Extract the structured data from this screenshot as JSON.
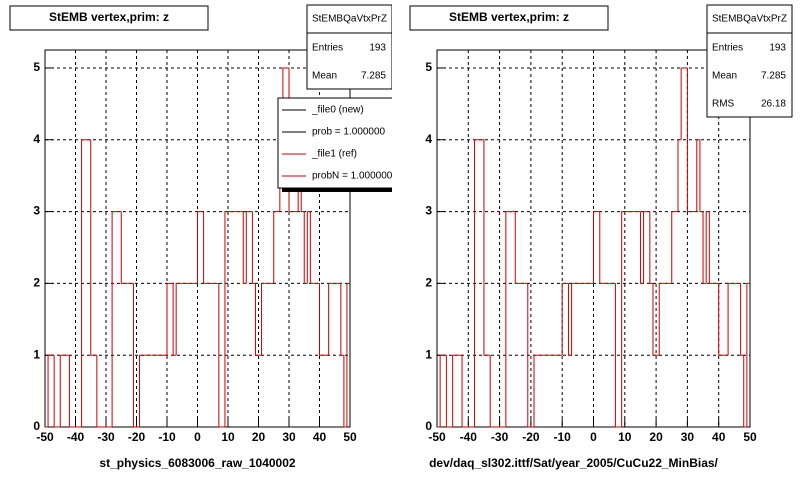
{
  "chart_data": [
    {
      "type": "histogram",
      "title": "StEMB  vertex,prim: z",
      "xlabel": "st_physics_6083006_raw_1040002",
      "bins": [
        -50,
        -49,
        -48,
        -47,
        -46,
        -45,
        -44,
        -43,
        -42,
        -41,
        -40,
        -39,
        -38,
        -37,
        -36,
        -35,
        -34,
        -33,
        -32,
        -31,
        -30,
        -29,
        -28,
        -27,
        -26,
        -25,
        -24,
        -23,
        -22,
        -21,
        -20,
        -19,
        -18,
        -17,
        -16,
        -15,
        -14,
        -13,
        -12,
        -11,
        -10,
        -9,
        -8,
        -7,
        -6,
        -5,
        -4,
        -3,
        -2,
        -1,
        0,
        1,
        2,
        3,
        4,
        5,
        6,
        7,
        8,
        9,
        10,
        11,
        12,
        13,
        14,
        15,
        16,
        17,
        18,
        19,
        20,
        21,
        22,
        23,
        24,
        25,
        26,
        27,
        28,
        29,
        30,
        31,
        32,
        33,
        34,
        35,
        36,
        37,
        38,
        39,
        40,
        41,
        42,
        43,
        44,
        45,
        46,
        47,
        48,
        49,
        50
      ],
      "values": [
        0,
        1,
        1,
        0,
        0,
        1,
        1,
        1,
        0,
        0,
        0,
        0,
        4,
        4,
        4,
        1,
        1,
        0,
        0,
        0,
        0,
        0,
        3,
        3,
        3,
        2,
        2,
        2,
        2,
        0,
        0,
        1,
        1,
        1,
        1,
        1,
        1,
        1,
        1,
        1,
        2,
        2,
        1,
        2,
        2,
        2,
        2,
        2,
        2,
        2,
        3,
        3,
        2,
        2,
        2,
        2,
        2,
        0,
        0,
        3,
        3,
        3,
        3,
        3,
        3,
        2,
        3,
        3,
        2,
        1,
        1,
        2,
        2,
        2,
        2,
        3,
        3,
        4,
        5,
        5,
        3,
        3,
        3,
        4,
        3,
        2,
        3,
        2,
        2,
        2,
        1,
        1,
        1,
        2,
        2,
        2,
        2,
        1,
        0,
        2
      ],
      "color": "#cc0000",
      "xlim": [
        -50,
        50
      ],
      "ylim": [
        0,
        5.25
      ],
      "xticks": [
        -50,
        -40,
        -30,
        -20,
        -10,
        0,
        10,
        20,
        30,
        40,
        50
      ],
      "yticks": [
        0,
        1,
        2,
        3,
        4,
        5
      ],
      "grid": true,
      "stats": {
        "title": "StEMBQaVtxPrZ",
        "rows": [
          {
            "label": "Entries",
            "value": "193"
          },
          {
            "label": "Mean",
            "value": "7.285"
          }
        ]
      },
      "legend": [
        {
          "text": "_file0 (new)",
          "color": "#000000"
        },
        {
          "text": "prob = 1.000000",
          "color": "#000000"
        },
        {
          "text": "_file1 (ref)",
          "color": "#cc0000"
        },
        {
          "text": "probN = 1.000000",
          "color": "#cc0000"
        }
      ]
    },
    {
      "type": "histogram",
      "title": "StEMB  vertex,prim: z",
      "xlabel": "dev/daq_sl302.ittf/Sat/year_2005/CuCu22_MinBias/",
      "bins": [
        -50,
        -49,
        -48,
        -47,
        -46,
        -45,
        -44,
        -43,
        -42,
        -41,
        -40,
        -39,
        -38,
        -37,
        -36,
        -35,
        -34,
        -33,
        -32,
        -31,
        -30,
        -29,
        -28,
        -27,
        -26,
        -25,
        -24,
        -23,
        -22,
        -21,
        -20,
        -19,
        -18,
        -17,
        -16,
        -15,
        -14,
        -13,
        -12,
        -11,
        -10,
        -9,
        -8,
        -7,
        -6,
        -5,
        -4,
        -3,
        -2,
        -1,
        0,
        1,
        2,
        3,
        4,
        5,
        6,
        7,
        8,
        9,
        10,
        11,
        12,
        13,
        14,
        15,
        16,
        17,
        18,
        19,
        20,
        21,
        22,
        23,
        24,
        25,
        26,
        27,
        28,
        29,
        30,
        31,
        32,
        33,
        34,
        35,
        36,
        37,
        38,
        39,
        40,
        41,
        42,
        43,
        44,
        45,
        46,
        47,
        48,
        49,
        50
      ],
      "values": [
        0,
        1,
        1,
        0,
        0,
        1,
        1,
        1,
        0,
        0,
        0,
        0,
        4,
        4,
        4,
        1,
        1,
        0,
        0,
        0,
        0,
        0,
        3,
        3,
        3,
        2,
        2,
        2,
        2,
        0,
        0,
        1,
        1,
        1,
        1,
        1,
        1,
        1,
        1,
        1,
        2,
        2,
        1,
        2,
        2,
        2,
        2,
        2,
        2,
        2,
        3,
        3,
        2,
        2,
        2,
        2,
        2,
        0,
        0,
        3,
        3,
        3,
        3,
        3,
        3,
        2,
        3,
        3,
        2,
        1,
        1,
        2,
        2,
        2,
        2,
        3,
        3,
        4,
        5,
        5,
        3,
        3,
        3,
        4,
        3,
        2,
        3,
        2,
        2,
        2,
        1,
        1,
        1,
        2,
        2,
        2,
        2,
        1,
        0,
        2
      ],
      "color": "#cc0000",
      "xlim": [
        -50,
        50
      ],
      "ylim": [
        0,
        5.25
      ],
      "xticks": [
        -50,
        -40,
        -30,
        -20,
        -10,
        0,
        10,
        20,
        30,
        40,
        50
      ],
      "yticks": [
        0,
        1,
        2,
        3,
        4,
        5
      ],
      "grid": true,
      "stats": {
        "title": "StEMBQaVtxPrZ",
        "rows": [
          {
            "label": "Entries",
            "value": "193"
          },
          {
            "label": "Mean",
            "value": "7.285"
          },
          {
            "label": "RMS",
            "value": "26.18"
          }
        ]
      }
    }
  ]
}
